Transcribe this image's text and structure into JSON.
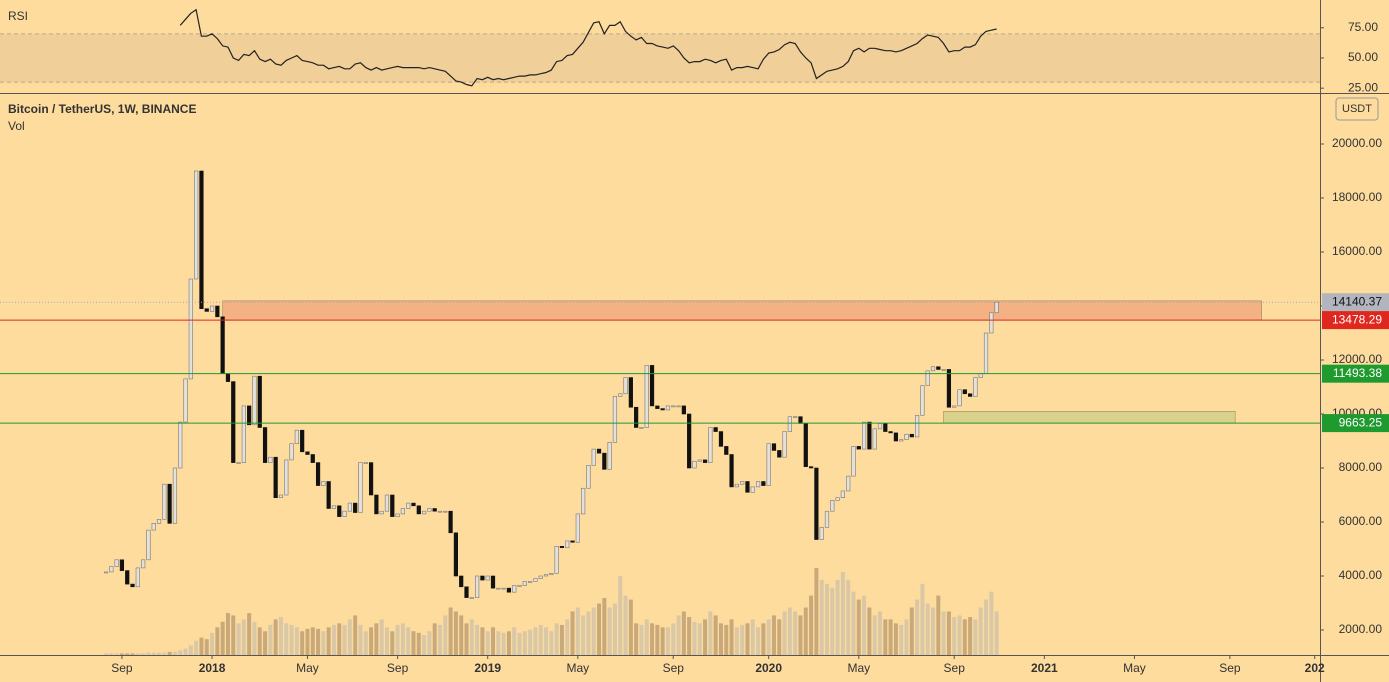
{
  "chart_data": {
    "type": "candlestick",
    "title": "Bitcoin / TetherUS, 1W, BINANCE",
    "volume_label": "Vol",
    "currency": "USDT",
    "xlim": [
      -20,
      229
    ],
    "xticks": [
      {
        "value": 3,
        "label": "Sep"
      },
      {
        "value": 20,
        "label": "2018"
      },
      {
        "value": 38,
        "label": "May"
      },
      {
        "value": 55,
        "label": "Sep"
      },
      {
        "value": 72,
        "label": "2019"
      },
      {
        "value": 89,
        "label": "May"
      },
      {
        "value": 107,
        "label": "Sep"
      },
      {
        "value": 125,
        "label": "2020"
      },
      {
        "value": 142,
        "label": "May"
      },
      {
        "value": 160,
        "label": "Sep"
      },
      {
        "value": 177,
        "label": "2021"
      },
      {
        "value": 194,
        "label": "May"
      },
      {
        "value": 212,
        "label": "Sep"
      },
      {
        "value": 228,
        "label": "202"
      }
    ],
    "ylim": [
      1074,
      21778
    ],
    "yticks": [
      {
        "value": 2000,
        "label": "2000.00"
      },
      {
        "value": 4000,
        "label": "4000.00"
      },
      {
        "value": 6000,
        "label": "6000.00"
      },
      {
        "value": 8000,
        "label": "8000.00"
      },
      {
        "value": 10000,
        "label": "10000.00"
      },
      {
        "value": 12000,
        "label": "12000.00"
      },
      {
        "value": 14000,
        "label": "14000.00"
      },
      {
        "value": 16000,
        "label": "16000.00"
      },
      {
        "value": 18000,
        "label": "18000.00"
      },
      {
        "value": 20000,
        "label": "20000.00"
      }
    ],
    "up_color": "#e4e0da",
    "down_color": "#111111",
    "values": [
      4150,
      4350,
      4600,
      4200,
      3700,
      3600,
      4300,
      4600,
      5700,
      5950,
      6100,
      7400,
      5950,
      8000,
      9700,
      11300,
      15000,
      19000,
      13900,
      13800,
      14000,
      13600,
      11500,
      11200,
      8200,
      8200,
      10300,
      9600,
      11400,
      9500,
      8200,
      8400,
      6900,
      7000,
      8300,
      8900,
      9400,
      8600,
      8500,
      8200,
      7350,
      7500,
      6500,
      6600,
      6200,
      6400,
      6700,
      6350,
      8200,
      8200,
      7000,
      6300,
      6400,
      7000,
      6200,
      6300,
      6500,
      6700,
      6600,
      6300,
      6400,
      6500,
      6400,
      6400,
      6400,
      5600,
      4000,
      3600,
      3200,
      3200,
      4000,
      3850,
      4000,
      3550,
      3550,
      3550,
      3400,
      3650,
      3650,
      3800,
      3800,
      3900,
      4000,
      4050,
      4100,
      5100,
      5050,
      5300,
      5250,
      6300,
      7250,
      8100,
      8700,
      8550,
      7950,
      8950,
      10650,
      10750,
      11350,
      10250,
      9500,
      9500,
      11800,
      10300,
      10200,
      10150,
      10300,
      10300,
      10300,
      10000,
      8000,
      8250,
      8300,
      8200,
      9500,
      9350,
      8800,
      8500,
      7300,
      7400,
      7500,
      7100,
      7300,
      7500,
      7350,
      8900,
      8650,
      8400,
      9350,
      9900,
      9900,
      9650,
      8050,
      8000,
      5350,
      5800,
      6400,
      6800,
      6900,
      7150,
      7700,
      8800,
      8700,
      9700,
      8700,
      9450,
      9650,
      9350,
      9300,
      9000,
      9050,
      9250,
      9150,
      9950,
      11050,
      11600,
      11750,
      11650,
      11650,
      10250,
      10300,
      10900,
      10750,
      10650,
      11350,
      11500,
      13000,
      13750,
      14140
    ],
    "volume": {
      "ylim": [
        0,
        120
      ],
      "up_color": "#d9c7a6",
      "down_color": "#c9a97a",
      "values": [
        2,
        2,
        2,
        2,
        2,
        2,
        2,
        2,
        3,
        3,
        3,
        3,
        4,
        4,
        6,
        8,
        12,
        18,
        22,
        20,
        28,
        35,
        42,
        53,
        50,
        40,
        45,
        53,
        42,
        35,
        30,
        38,
        45,
        48,
        40,
        38,
        35,
        30,
        33,
        35,
        33,
        30,
        35,
        38,
        40,
        38,
        45,
        50,
        38,
        30,
        35,
        40,
        45,
        35,
        30,
        38,
        40,
        35,
        30,
        28,
        25,
        30,
        40,
        38,
        50,
        60,
        55,
        50,
        40,
        45,
        38,
        35,
        30,
        35,
        30,
        28,
        30,
        35,
        28,
        30,
        32,
        35,
        38,
        35,
        30,
        40,
        38,
        45,
        55,
        60,
        50,
        55,
        60,
        65,
        72,
        60,
        65,
        100,
        75,
        70,
        40,
        38,
        45,
        40,
        38,
        35,
        35,
        40,
        50,
        55,
        48,
        42,
        40,
        45,
        55,
        50,
        40,
        38,
        45,
        35,
        38,
        40,
        45,
        35,
        40,
        45,
        50,
        45,
        55,
        60,
        55,
        50,
        60,
        75,
        110,
        95,
        90,
        85,
        95,
        105,
        95,
        80,
        70,
        75,
        60,
        50,
        55,
        45,
        45,
        40,
        38,
        45,
        60,
        70,
        90,
        65,
        60,
        75,
        55,
        55,
        48,
        50,
        45,
        48,
        45,
        60,
        70,
        80,
        55
      ]
    },
    "rsi": {
      "label": "RSI",
      "ylim": [
        21,
        98
      ],
      "band": [
        30,
        70
      ],
      "color": "#222222",
      "yticks": [
        {
          "value": 25,
          "label": "25.00"
        },
        {
          "value": 50,
          "label": "50.00"
        },
        {
          "value": 75,
          "label": "75.00"
        }
      ],
      "values": [
        null,
        null,
        null,
        null,
        null,
        null,
        null,
        null,
        null,
        null,
        null,
        null,
        null,
        null,
        77,
        82,
        87,
        90,
        68,
        68,
        70,
        66,
        60,
        59,
        50,
        48,
        53,
        52,
        56,
        49,
        47,
        49,
        45,
        44,
        48,
        50,
        52,
        48,
        47,
        46,
        44,
        44,
        41,
        42,
        43,
        41,
        41,
        45,
        46,
        42,
        40,
        42,
        40,
        41,
        42,
        43,
        42,
        42,
        42,
        42,
        41,
        42,
        41,
        40,
        39,
        35,
        31,
        30,
        28,
        27,
        33,
        32,
        34,
        32,
        33,
        32,
        33,
        34,
        35,
        35,
        36,
        36,
        37,
        38,
        40,
        47,
        48,
        52,
        53,
        58,
        63,
        71,
        79,
        80,
        70,
        77,
        77,
        80,
        72,
        68,
        65,
        67,
        62,
        62,
        60,
        59,
        58,
        60,
        56,
        50,
        46,
        47,
        47,
        49,
        48,
        46,
        48,
        49,
        40,
        42,
        42,
        43,
        42,
        41,
        49,
        54,
        55,
        57,
        61,
        63,
        62,
        55,
        50,
        46,
        33,
        36,
        39,
        40,
        41,
        43,
        47,
        56,
        58,
        55,
        58,
        58,
        57,
        56,
        56,
        55,
        56,
        58,
        60,
        62,
        66,
        69,
        68,
        67,
        62,
        55,
        56,
        56,
        59,
        59,
        61,
        68,
        72,
        73,
        74
      ]
    },
    "last_price": {
      "value": 14140.37,
      "color": "#b2b5be"
    },
    "levels": [
      {
        "value": 13478.29,
        "color": "#e0271f"
      },
      {
        "value": 11493.38,
        "color": "#1e9a2e"
      },
      {
        "value": 9663.25,
        "color": "#1e9a2e"
      }
    ],
    "zones": [
      {
        "x": [
          22,
          218
        ],
        "y": [
          13478.29,
          14190
        ],
        "color": "#f4b183"
      },
      {
        "x": [
          158,
          213
        ],
        "y": [
          9663.25,
          10100
        ],
        "color": "#d9d18c"
      }
    ]
  }
}
